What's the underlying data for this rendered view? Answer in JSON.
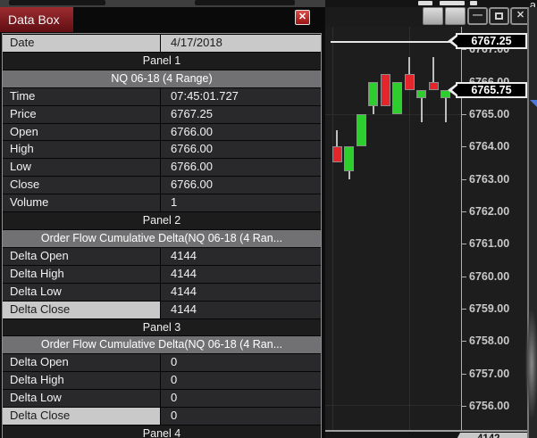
{
  "window": {
    "title": "Data Box",
    "close_icon": "✕",
    "controls": {
      "minimize_icon": "—",
      "close_icon": "✕"
    }
  },
  "background": {
    "corner_char": "a"
  },
  "databox": {
    "rows": [
      {
        "type": "data",
        "label": "Date",
        "value": "4/17/2018",
        "highlight": "row"
      },
      {
        "type": "panel",
        "label": "Panel 1"
      },
      {
        "type": "header",
        "label": "NQ 06-18 (4 Range)"
      },
      {
        "type": "data",
        "label": "Time",
        "value": "07:45:01.727"
      },
      {
        "type": "data",
        "label": "Price",
        "value": "6767.25"
      },
      {
        "type": "data",
        "label": "Open",
        "value": "6766.00"
      },
      {
        "type": "data",
        "label": "High",
        "value": "6766.00"
      },
      {
        "type": "data",
        "label": "Low",
        "value": "6766.00"
      },
      {
        "type": "data",
        "label": "Close",
        "value": "6766.00"
      },
      {
        "type": "data",
        "label": "Volume",
        "value": "1"
      },
      {
        "type": "panel",
        "label": "Panel 2"
      },
      {
        "type": "header",
        "label": "Order Flow Cumulative Delta(NQ 06-18 (4 Ran..."
      },
      {
        "type": "data",
        "label": "Delta Open",
        "value": "4144"
      },
      {
        "type": "data",
        "label": "Delta High",
        "value": "4144"
      },
      {
        "type": "data",
        "label": "Delta Low",
        "value": "4144"
      },
      {
        "type": "data",
        "label": "Delta Close",
        "value": "4144",
        "highlight": "label"
      },
      {
        "type": "panel",
        "label": "Panel 3"
      },
      {
        "type": "header",
        "label": "Order Flow Cumulative Delta(NQ 06-18 (4 Ran..."
      },
      {
        "type": "data",
        "label": "Delta Open",
        "value": "0"
      },
      {
        "type": "data",
        "label": "Delta High",
        "value": "0"
      },
      {
        "type": "data",
        "label": "Delta Low",
        "value": "0"
      },
      {
        "type": "data",
        "label": "Delta Close",
        "value": "0",
        "highlight": "label"
      },
      {
        "type": "panel",
        "label": "Panel 4"
      }
    ]
  },
  "chart_data": {
    "type": "candlestick",
    "instrument": "NQ 06-18 (4 Range)",
    "crosshair_label": "6767.25",
    "last_price": "6765.75",
    "delta_marker": "4142",
    "axis_ticks": [
      "6767.00",
      "6766.00",
      "6765.00",
      "6764.00",
      "6763.00",
      "6762.00",
      "6761.00",
      "6760.00",
      "6759.00",
      "6758.00",
      "6757.00",
      "6756.00"
    ],
    "ylim": [
      6756.0,
      6767.25
    ],
    "candles": [
      {
        "o": 6764.0,
        "h": 6764.5,
        "l": 6763.5,
        "c": 6763.5
      },
      {
        "o": 6763.25,
        "h": 6764.0,
        "l": 6763.0,
        "c": 6764.0
      },
      {
        "o": 6764.0,
        "h": 6765.0,
        "l": 6764.0,
        "c": 6765.0
      },
      {
        "o": 6765.25,
        "h": 6766.0,
        "l": 6765.0,
        "c": 6766.0
      },
      {
        "o": 6766.25,
        "h": 6766.25,
        "l": 6765.25,
        "c": 6765.25
      },
      {
        "o": 6765.0,
        "h": 6766.0,
        "l": 6765.0,
        "c": 6766.0
      },
      {
        "o": 6766.25,
        "h": 6766.75,
        "l": 6765.75,
        "c": 6765.75
      },
      {
        "o": 6765.5,
        "h": 6765.75,
        "l": 6764.75,
        "c": 6765.75
      },
      {
        "o": 6766.0,
        "h": 6766.75,
        "l": 6765.75,
        "c": 6765.75
      },
      {
        "o": 6765.5,
        "h": 6765.75,
        "l": 6764.75,
        "c": 6765.75
      }
    ],
    "colors": {
      "up": "#2dce2d",
      "down": "#e4252b",
      "wick": "#bdbdbd",
      "outline": "#8e8e8e"
    }
  }
}
